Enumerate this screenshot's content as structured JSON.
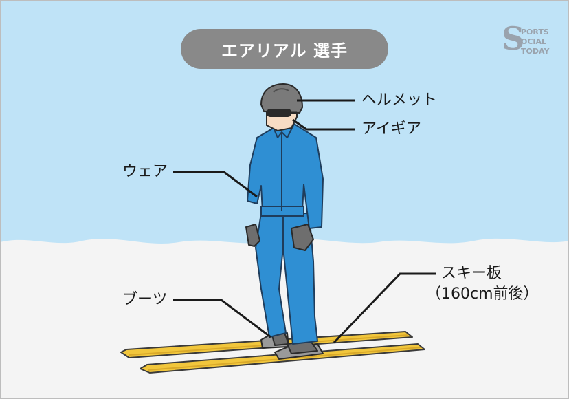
{
  "title": "エアリアル 選手",
  "labels": {
    "helmet": "ヘルメット",
    "eyegear": "アイギア",
    "wear": "ウェア",
    "boots": "ブーツ",
    "ski_line1": "スキー板",
    "ski_line2": "（160cm前後）"
  },
  "logo_text": "SPORTS SOCIAL TODAY",
  "colors": {
    "sky": "#bfe3f7",
    "snow": "#f4f4f4",
    "wear": "#2f8fd3",
    "helmet": "#7a7a7a",
    "ski": "#f1c63c",
    "title_bg": "#898989"
  }
}
